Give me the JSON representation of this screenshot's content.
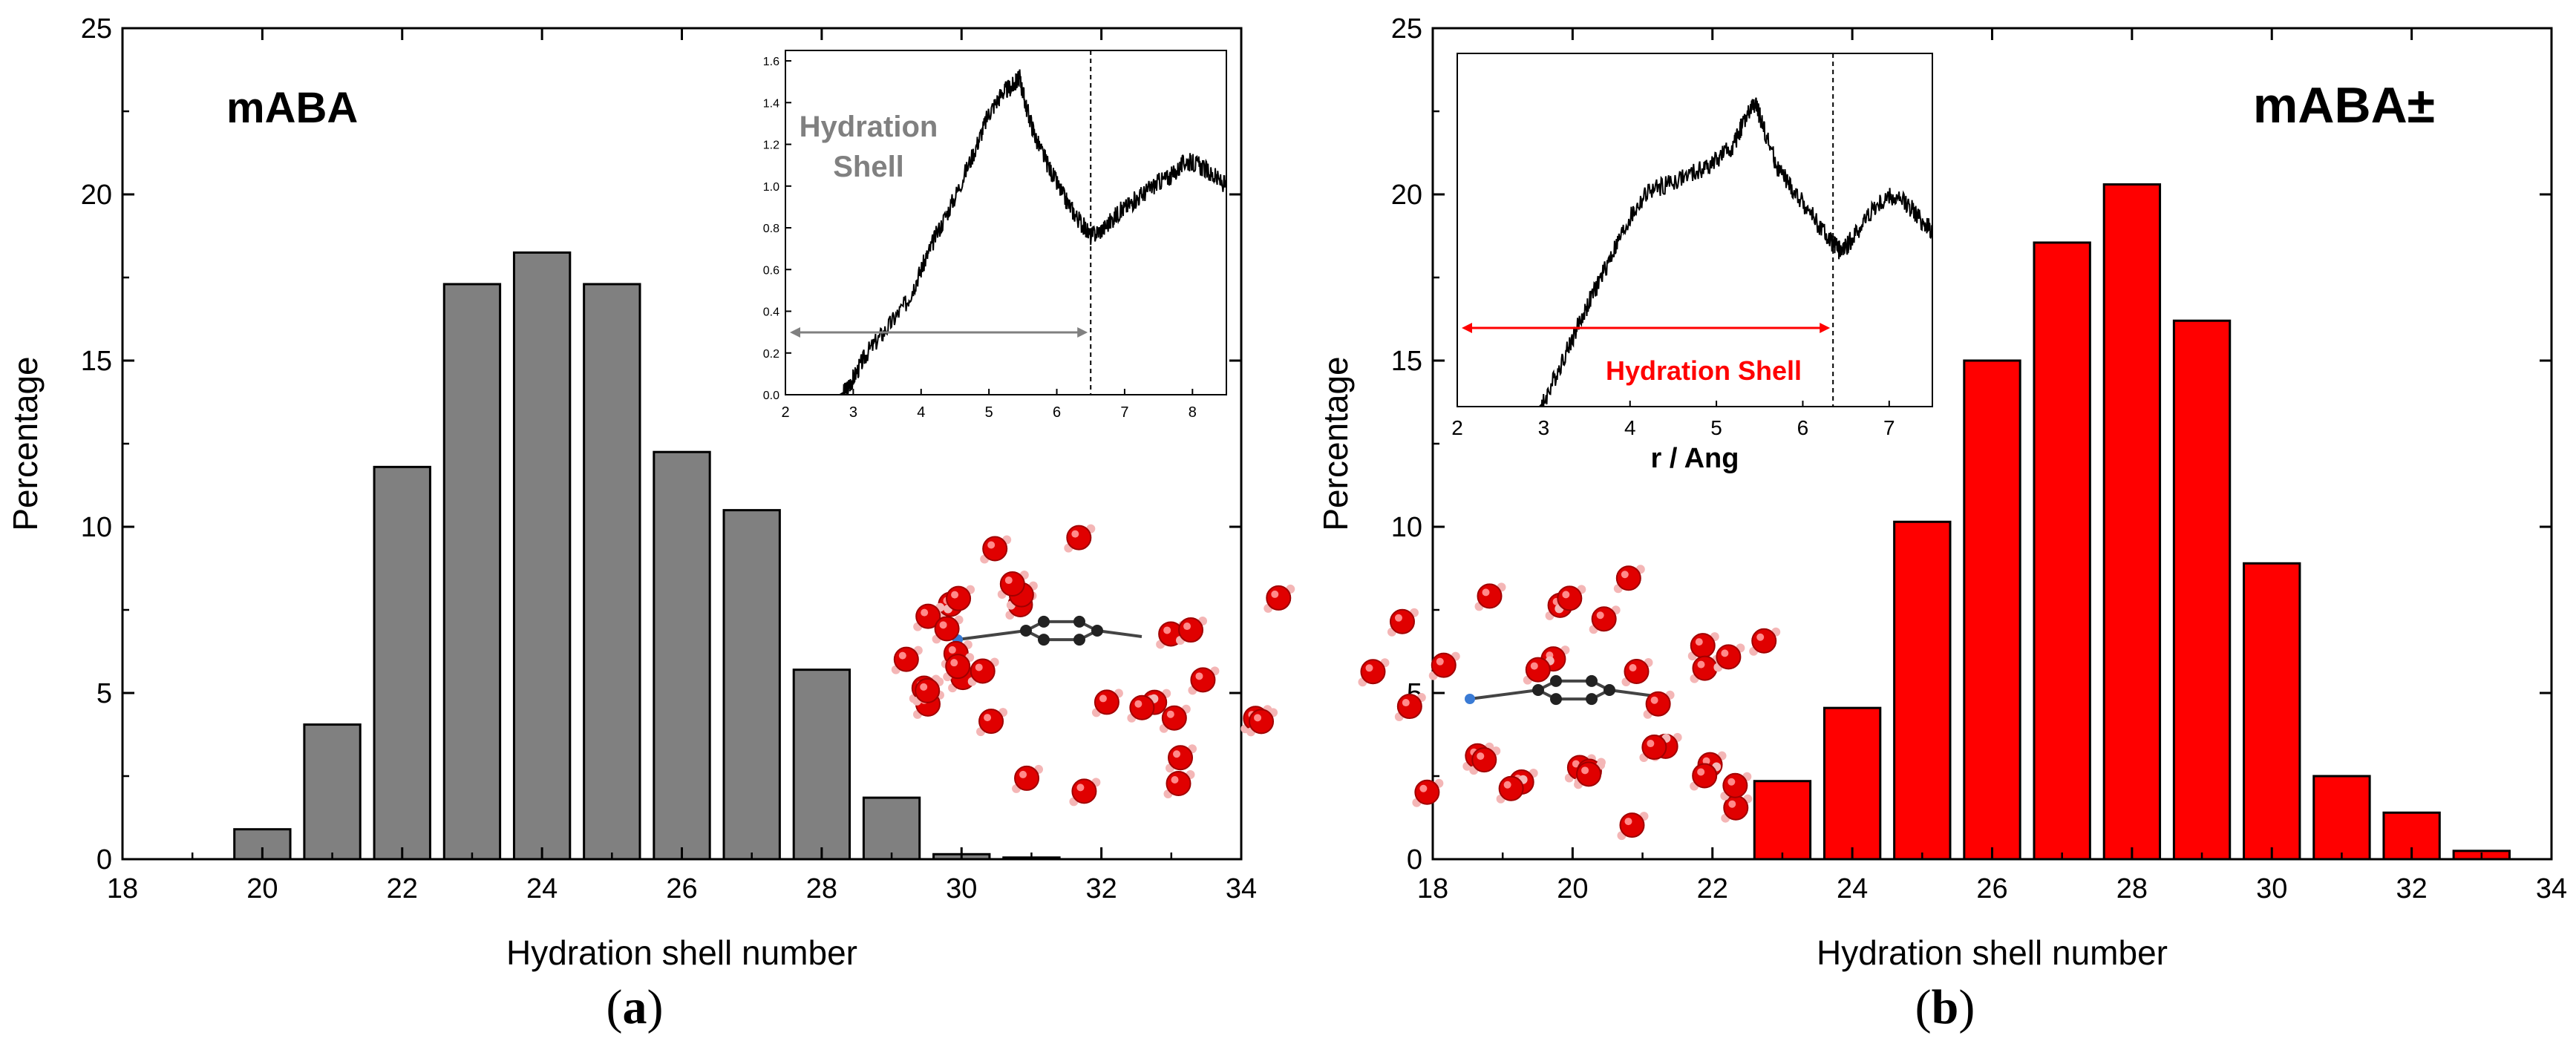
{
  "chart_data": [
    {
      "type": "bar",
      "panel_label": "a",
      "title": "mABA",
      "xlabel": "Hydration shell number",
      "ylabel": "Percentage",
      "xlim": [
        18,
        34
      ],
      "ylim": [
        0,
        25
      ],
      "xticks": [
        18,
        20,
        22,
        24,
        26,
        28,
        30,
        32,
        34
      ],
      "yticks": [
        0,
        5,
        10,
        15,
        20,
        25
      ],
      "bar_color": "#808080",
      "x": [
        20,
        21,
        22,
        23,
        24,
        25,
        26,
        27,
        28,
        29,
        30,
        31
      ],
      "values": [
        0.9,
        4.05,
        11.8,
        17.3,
        18.25,
        17.3,
        12.25,
        10.5,
        5.7,
        1.85,
        0.15,
        0.05
      ],
      "inset": {
        "type": "line",
        "xlim": [
          2,
          8.5
        ],
        "ylim": [
          0,
          1.65
        ],
        "xticks": [
          2,
          3,
          4,
          5,
          6,
          7,
          8
        ],
        "yticks": [
          "0.0",
          "0.2",
          "0.4",
          "0.6",
          "0.8",
          "1.0",
          "1.2",
          "1.4",
          "1.6"
        ],
        "xlabel": "",
        "shell_cutoff": 6.5,
        "annotation": "Hydration Shell",
        "annotation_color": "#808080",
        "curve": [
          [
            2.0,
            0
          ],
          [
            2.8,
            0
          ],
          [
            2.9,
            0.02
          ],
          [
            3.0,
            0.08
          ],
          [
            3.2,
            0.2
          ],
          [
            3.5,
            0.32
          ],
          [
            3.8,
            0.45
          ],
          [
            4.0,
            0.6
          ],
          [
            4.2,
            0.75
          ],
          [
            4.5,
            0.95
          ],
          [
            4.8,
            1.18
          ],
          [
            5.0,
            1.35
          ],
          [
            5.2,
            1.45
          ],
          [
            5.35,
            1.48
          ],
          [
            5.45,
            1.52
          ],
          [
            5.55,
            1.38
          ],
          [
            5.7,
            1.22
          ],
          [
            5.9,
            1.08
          ],
          [
            6.1,
            0.95
          ],
          [
            6.3,
            0.85
          ],
          [
            6.5,
            0.76
          ],
          [
            6.7,
            0.8
          ],
          [
            6.9,
            0.87
          ],
          [
            7.1,
            0.92
          ],
          [
            7.3,
            0.97
          ],
          [
            7.5,
            1.02
          ],
          [
            7.7,
            1.05
          ],
          [
            7.9,
            1.12
          ],
          [
            8.1,
            1.1
          ],
          [
            8.3,
            1.05
          ],
          [
            8.5,
            1.0
          ]
        ]
      }
    },
    {
      "type": "bar",
      "panel_label": "b",
      "title": "mABA±",
      "xlabel": "Hydration shell number",
      "ylabel": "Percentage",
      "xlim": [
        18,
        34
      ],
      "ylim": [
        0,
        25
      ],
      "xticks": [
        18,
        20,
        22,
        24,
        26,
        28,
        30,
        32,
        34
      ],
      "yticks": [
        0,
        5,
        10,
        15,
        20,
        25
      ],
      "bar_color": "#ff0000",
      "x": [
        23,
        24,
        25,
        26,
        27,
        28,
        29,
        30,
        31,
        32,
        33
      ],
      "values": [
        2.35,
        4.55,
        10.15,
        15.0,
        18.55,
        20.3,
        16.2,
        8.9,
        2.5,
        1.4,
        0.25
      ],
      "inset": {
        "type": "line",
        "xlim": [
          2,
          7.5
        ],
        "ylim": [
          0,
          1.65
        ],
        "xticks": [
          2,
          3,
          4,
          5,
          6,
          7
        ],
        "yticks": [],
        "xlabel": "r / Ang",
        "shell_cutoff": 6.35,
        "annotation": "Hydration Shell",
        "annotation_color": "#ff0000",
        "curve": [
          [
            2.0,
            0
          ],
          [
            2.95,
            0
          ],
          [
            3.0,
            0.02
          ],
          [
            3.2,
            0.2
          ],
          [
            3.4,
            0.38
          ],
          [
            3.6,
            0.55
          ],
          [
            3.8,
            0.72
          ],
          [
            4.0,
            0.88
          ],
          [
            4.2,
            1.0
          ],
          [
            4.5,
            1.05
          ],
          [
            4.8,
            1.1
          ],
          [
            5.0,
            1.15
          ],
          [
            5.2,
            1.22
          ],
          [
            5.3,
            1.32
          ],
          [
            5.45,
            1.42
          ],
          [
            5.55,
            1.3
          ],
          [
            5.7,
            1.12
          ],
          [
            5.9,
            1.0
          ],
          [
            6.1,
            0.9
          ],
          [
            6.3,
            0.78
          ],
          [
            6.45,
            0.72
          ],
          [
            6.6,
            0.8
          ],
          [
            6.8,
            0.92
          ],
          [
            7.0,
            0.98
          ],
          [
            7.2,
            0.95
          ],
          [
            7.4,
            0.86
          ],
          [
            7.5,
            0.82
          ]
        ]
      }
    }
  ],
  "panel_labels": {
    "a": "a",
    "b": "b"
  }
}
